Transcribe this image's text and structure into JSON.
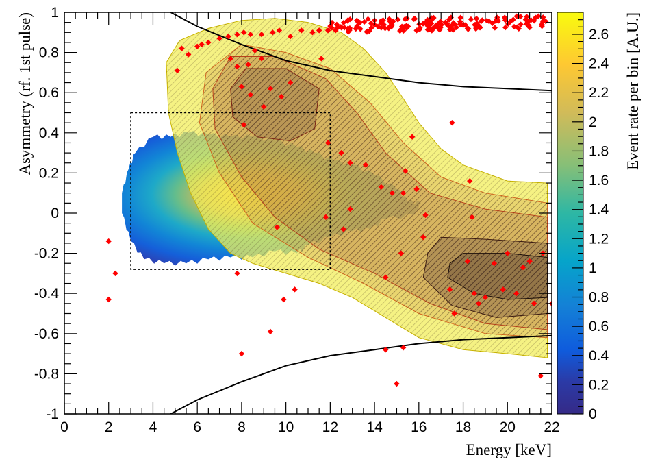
{
  "chart_data": {
    "type": "heatmap",
    "title": "",
    "xlabel": "Energy [keV]",
    "ylabel": "Asymmetry (rf. 1st pulse)",
    "zlabel": "Event rate per bin [A.U.]",
    "xlim": [
      0,
      22
    ],
    "ylim": [
      -1,
      1
    ],
    "zlim": [
      0,
      2.75
    ],
    "x_ticks": [
      0,
      2,
      4,
      6,
      8,
      10,
      12,
      14,
      16,
      18,
      20,
      22
    ],
    "x_tick_labels": [
      "0",
      "2",
      "4",
      "6",
      "8",
      "10",
      "12",
      "14",
      "16",
      "18",
      "20",
      "22"
    ],
    "y_ticks": [
      -1,
      -0.8,
      -0.6,
      -0.4,
      -0.2,
      0,
      0.2,
      0.4,
      0.6,
      0.8,
      1
    ],
    "y_tick_labels": [
      "-1",
      "-0.8",
      "-0.6",
      "-0.4",
      "-0.2",
      "0",
      "0.2",
      "0.4",
      "0.6",
      "0.8",
      "1"
    ],
    "z_ticks": [
      0,
      0.2,
      0.4,
      0.6,
      0.8,
      1,
      1.2,
      1.4,
      1.6,
      1.8,
      2,
      2.2,
      2.4,
      2.6
    ],
    "z_tick_labels": [
      "0",
      "0.2",
      "0.4",
      "0.6",
      "0.8",
      "1",
      "1.2",
      "1.4",
      "1.6",
      "1.8",
      "2",
      "2.2",
      "2.4",
      "2.6"
    ],
    "colorscale": [
      "#352a87",
      "#0f5cdd",
      "#1481d6",
      "#06a4ca",
      "#2eb7a4",
      "#87bf77",
      "#d1bb59",
      "#fec832",
      "#f9fb0e"
    ],
    "heatmap": {
      "center": [
        6.8,
        0.06
      ],
      "x_range": [
        2.6,
        17.0
      ],
      "peak_value": 2.75
    },
    "selection_box": {
      "x": [
        3,
        12
      ],
      "y": [
        -0.28,
        0.5
      ]
    },
    "cut_curves": {
      "upper": [
        [
          4.8,
          1.0
        ],
        [
          6,
          0.93
        ],
        [
          8,
          0.84
        ],
        [
          10,
          0.76
        ],
        [
          12,
          0.71
        ],
        [
          14,
          0.68
        ],
        [
          16,
          0.65
        ],
        [
          18,
          0.63
        ],
        [
          20,
          0.62
        ],
        [
          22,
          0.61
        ]
      ],
      "lower": [
        [
          4.8,
          -1.0
        ],
        [
          6,
          -0.93
        ],
        [
          8,
          -0.84
        ],
        [
          10,
          -0.76
        ],
        [
          12,
          -0.71
        ],
        [
          14,
          -0.68
        ],
        [
          16,
          -0.65
        ],
        [
          18,
          -0.63
        ],
        [
          20,
          -0.62
        ],
        [
          22,
          -0.61
        ]
      ]
    },
    "contour_region": {
      "outer": [
        [
          4.6,
          0.75
        ],
        [
          5.2,
          0.86
        ],
        [
          6.5,
          0.92
        ],
        [
          8,
          0.96
        ],
        [
          9.5,
          0.97
        ],
        [
          11,
          0.95
        ],
        [
          12.5,
          0.9
        ],
        [
          13.5,
          0.82
        ],
        [
          14.5,
          0.7
        ],
        [
          15.3,
          0.57
        ],
        [
          16,
          0.45
        ],
        [
          17,
          0.32
        ],
        [
          18,
          0.24
        ],
        [
          20,
          0.16
        ],
        [
          21.8,
          0.15
        ],
        [
          21.8,
          -0.72
        ],
        [
          20,
          -0.7
        ],
        [
          18,
          -0.68
        ],
        [
          16,
          -0.62
        ],
        [
          14.5,
          -0.52
        ],
        [
          13,
          -0.42
        ],
        [
          11.5,
          -0.35
        ],
        [
          10,
          -0.3
        ],
        [
          8.5,
          -0.25
        ],
        [
          7.5,
          -0.2
        ],
        [
          6.5,
          -0.08
        ],
        [
          5.7,
          0.1
        ],
        [
          5.1,
          0.3
        ],
        [
          4.7,
          0.5
        ]
      ],
      "inner_levels": [
        [
          [
            8,
            0.84
          ],
          [
            10,
            0.8
          ],
          [
            12,
            0.72
          ],
          [
            13.8,
            0.55
          ],
          [
            15.3,
            0.35
          ],
          [
            17,
            0.18
          ],
          [
            19,
            0.1
          ],
          [
            21.8,
            0.05
          ],
          [
            21.8,
            -0.62
          ],
          [
            19,
            -0.6
          ],
          [
            16,
            -0.5
          ],
          [
            13.5,
            -0.35
          ],
          [
            11,
            -0.22
          ],
          [
            8.5,
            -0.05
          ],
          [
            7,
            0.2
          ],
          [
            6.1,
            0.45
          ],
          [
            6.4,
            0.7
          ]
        ],
        [
          [
            7.5,
            0.78
          ],
          [
            9.5,
            0.78
          ],
          [
            11.8,
            0.67
          ],
          [
            13.2,
            0.5
          ],
          [
            14.5,
            0.3
          ],
          [
            16.5,
            0.1
          ],
          [
            19,
            0.02
          ],
          [
            21.8,
            -0.02
          ],
          [
            21.8,
            -0.58
          ],
          [
            19,
            -0.55
          ],
          [
            16.5,
            -0.45
          ],
          [
            14,
            -0.3
          ],
          [
            11.5,
            -0.18
          ],
          [
            9.5,
            -0.02
          ],
          [
            8,
            0.18
          ],
          [
            6.8,
            0.42
          ],
          [
            6.7,
            0.62
          ]
        ],
        [
          [
            8.2,
            0.72
          ],
          [
            10,
            0.72
          ],
          [
            11.5,
            0.62
          ],
          [
            11.3,
            0.42
          ],
          [
            10.2,
            0.36
          ],
          [
            8.7,
            0.38
          ],
          [
            7.6,
            0.48
          ],
          [
            7.5,
            0.62
          ]
        ],
        [
          [
            17,
            -0.12
          ],
          [
            19,
            -0.13
          ],
          [
            21.8,
            -0.15
          ],
          [
            21.8,
            -0.5
          ],
          [
            19.5,
            -0.52
          ],
          [
            17.5,
            -0.46
          ],
          [
            16.2,
            -0.32
          ],
          [
            16.4,
            -0.2
          ]
        ],
        [
          [
            18,
            -0.2
          ],
          [
            20,
            -0.2
          ],
          [
            21.8,
            -0.22
          ],
          [
            21.8,
            -0.42
          ],
          [
            20,
            -0.43
          ],
          [
            18.5,
            -0.4
          ],
          [
            17.3,
            -0.32
          ],
          [
            17.4,
            -0.25
          ]
        ]
      ]
    },
    "scatter_points": [
      [
        2.0,
        -0.43
      ],
      [
        2.0,
        -0.14
      ],
      [
        2.3,
        -0.3
      ],
      [
        5.1,
        0.71
      ],
      [
        5.3,
        0.82
      ],
      [
        5.6,
        0.79
      ],
      [
        6.0,
        0.83
      ],
      [
        6.2,
        0.84
      ],
      [
        6.5,
        0.85
      ],
      [
        7.0,
        0.87
      ],
      [
        7.4,
        0.88
      ],
      [
        7.8,
        0.89
      ],
      [
        8.1,
        0.9
      ],
      [
        8.4,
        0.89
      ],
      [
        8.9,
        0.89
      ],
      [
        9.4,
        0.9
      ],
      [
        9.7,
        0.91
      ],
      [
        10.2,
        0.88
      ],
      [
        10.7,
        0.91
      ],
      [
        11.2,
        0.9
      ],
      [
        11.5,
        0.91
      ],
      [
        11.9,
        0.91
      ],
      [
        12.3,
        0.92
      ],
      [
        12.8,
        0.92
      ],
      [
        7.5,
        0.77
      ],
      [
        7.8,
        0.73
      ],
      [
        8.3,
        0.74
      ],
      [
        8.6,
        0.81
      ],
      [
        8.9,
        0.77
      ],
      [
        8.0,
        0.63
      ],
      [
        9.3,
        0.62
      ],
      [
        9.8,
        0.58
      ],
      [
        10.2,
        0.65
      ],
      [
        11.6,
        0.77
      ],
      [
        8.4,
        0.59
      ],
      [
        9.0,
        0.53
      ],
      [
        8.1,
        0.44
      ],
      [
        7.8,
        -0.3
      ],
      [
        9.6,
        -0.07
      ],
      [
        9.3,
        -0.59
      ],
      [
        9.9,
        -0.43
      ],
      [
        10.4,
        -0.38
      ],
      [
        8.0,
        -0.7
      ],
      [
        11.9,
        0.35
      ],
      [
        12.5,
        0.3
      ],
      [
        12.9,
        0.25
      ],
      [
        13.6,
        0.24
      ],
      [
        14.3,
        0.13
      ],
      [
        14.8,
        0.1
      ],
      [
        15.3,
        0.1
      ],
      [
        12.9,
        0.02
      ],
      [
        11.8,
        -0.02
      ],
      [
        12.6,
        -0.08
      ],
      [
        14.5,
        -0.32
      ],
      [
        15.2,
        -0.2
      ],
      [
        15.7,
        0.38
      ],
      [
        15.4,
        0.21
      ],
      [
        15.9,
        0.12
      ],
      [
        16.3,
        -0.01
      ],
      [
        16.2,
        -0.12
      ],
      [
        17.5,
        0.45
      ],
      [
        17.4,
        -0.38
      ],
      [
        17.6,
        -0.5
      ],
      [
        18.3,
        0.16
      ],
      [
        18.4,
        -0.02
      ],
      [
        18.5,
        -0.4
      ],
      [
        18.2,
        -0.24
      ],
      [
        18.7,
        -0.45
      ],
      [
        19.0,
        -0.42
      ],
      [
        19.4,
        -0.25
      ],
      [
        19.8,
        -0.38
      ],
      [
        20.0,
        -0.2
      ],
      [
        20.4,
        -0.4
      ],
      [
        20.7,
        -0.27
      ],
      [
        21.0,
        -0.24
      ],
      [
        21.2,
        -0.45
      ],
      [
        21.6,
        -0.2
      ],
      [
        22.0,
        -0.45
      ],
      [
        14.5,
        -0.68
      ],
      [
        15.0,
        -0.85
      ],
      [
        15.3,
        -0.67
      ],
      [
        21.5,
        -0.81
      ],
      [
        14.0,
        0.96
      ],
      [
        17.2,
        0.95
      ],
      [
        20.6,
        0.94
      ]
    ],
    "dense_band": {
      "x_range": [
        12.0,
        22.0
      ],
      "y_range": [
        0.9,
        0.98
      ]
    }
  }
}
